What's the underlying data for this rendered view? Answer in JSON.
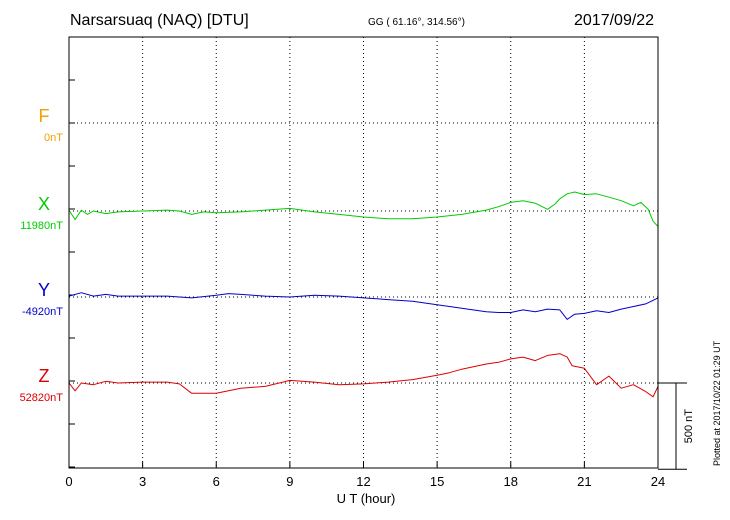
{
  "header": {
    "station": "Narsarsuaq (NAQ)  [DTU]",
    "coords": "GG ( 61.16°, 314.56°)",
    "date": "2017/09/22"
  },
  "footer": {
    "plotted": "Plotted at 2017/10/22 01:29 UT"
  },
  "chart_data": {
    "type": "line",
    "title": "Narsarsuaq (NAQ)  [DTU]",
    "xlabel": "U T (hour)",
    "xlim": [
      0,
      24
    ],
    "xticks": [
      "0",
      "3",
      "6",
      "9",
      "12",
      "15",
      "18",
      "21",
      "24"
    ],
    "grid": true,
    "scale_bar": {
      "label": "500 nT",
      "value_nT": 500
    },
    "series": [
      {
        "name": "F",
        "base_label": "0nT",
        "color": "#f0a000",
        "x": [],
        "values": []
      },
      {
        "name": "X",
        "base_label": "11980nT",
        "color": "#00cc00",
        "x": [
          0,
          0.25,
          0.5,
          0.75,
          1,
          1.5,
          2,
          3,
          4,
          4.5,
          5,
          5.5,
          6,
          7,
          8,
          9,
          9.5,
          10,
          11,
          12,
          13,
          14,
          15,
          16,
          17,
          17.5,
          18,
          18.5,
          19,
          19.5,
          19.8,
          20,
          20.3,
          20.6,
          21,
          21.5,
          22,
          22.5,
          23,
          23.3,
          23.6,
          23.8,
          24
        ],
        "values": [
          5,
          -50,
          5,
          -20,
          0,
          -15,
          -5,
          0,
          5,
          0,
          -20,
          -5,
          -10,
          -5,
          5,
          15,
          5,
          -5,
          -20,
          -35,
          -45,
          -45,
          -35,
          -20,
          5,
          25,
          50,
          60,
          45,
          10,
          40,
          70,
          100,
          110,
          95,
          100,
          80,
          60,
          30,
          50,
          10,
          -60,
          -90
        ]
      },
      {
        "name": "Y",
        "base_label": "-4920nT",
        "color": "#0000cc",
        "x": [
          0,
          0.5,
          1,
          1.5,
          2,
          3,
          4,
          5,
          6,
          6.5,
          7,
          8,
          9,
          10,
          11,
          12,
          13,
          14,
          15,
          16,
          17,
          17.5,
          18,
          18.5,
          19,
          19.5,
          20,
          20.3,
          20.6,
          21,
          21.5,
          22,
          22.5,
          23,
          23.5,
          24
        ],
        "values": [
          5,
          25,
          5,
          15,
          5,
          5,
          5,
          -5,
          10,
          20,
          15,
          5,
          0,
          10,
          5,
          -5,
          -15,
          -25,
          -45,
          -65,
          -85,
          -90,
          -90,
          -75,
          -85,
          -70,
          -75,
          -130,
          -100,
          -95,
          -80,
          -90,
          -70,
          -55,
          -40,
          -5
        ]
      },
      {
        "name": "Z",
        "base_label": "52820nT",
        "color": "#dd0000",
        "x": [
          0,
          0.25,
          0.5,
          1,
          1.5,
          2,
          3,
          4,
          4.5,
          5,
          6,
          7,
          8,
          9,
          10,
          11,
          12,
          13,
          14,
          15,
          15.5,
          16,
          17,
          17.5,
          18,
          18.5,
          19,
          19.5,
          20,
          20.3,
          20.5,
          21,
          21.5,
          22,
          22.5,
          23,
          23.5,
          23.8,
          24
        ],
        "values": [
          0,
          -45,
          0,
          -10,
          10,
          0,
          5,
          5,
          -5,
          -60,
          -60,
          -30,
          -20,
          15,
          5,
          -10,
          -5,
          5,
          20,
          45,
          60,
          80,
          110,
          120,
          140,
          150,
          130,
          160,
          170,
          150,
          100,
          85,
          -10,
          40,
          -30,
          -10,
          -50,
          -80,
          -20
        ]
      }
    ]
  }
}
